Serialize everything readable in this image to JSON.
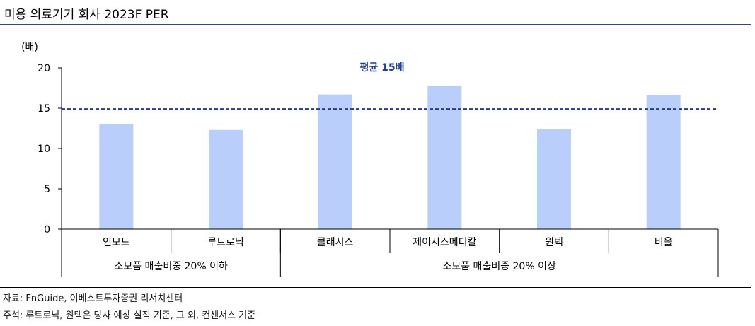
{
  "header": {
    "title": "미용 의료기기 회사 2023F PER"
  },
  "chart_data": {
    "type": "bar",
    "ylabel": "(배)",
    "ylim": [
      0,
      20
    ],
    "yticks": [
      0,
      5,
      10,
      15,
      20
    ],
    "categories": [
      "인모드",
      "루트로닉",
      "클래시스",
      "제이시스메디칼",
      "원텍",
      "비올"
    ],
    "values": [
      13.0,
      12.3,
      16.7,
      17.8,
      12.4,
      16.6
    ],
    "bar_color": "#b9cefa",
    "average": {
      "label": "평균 15배",
      "value": 14.9,
      "color": "#1f3c8f"
    },
    "groups": [
      {
        "label": "소모품 매출비중 20% 이하",
        "from": 0,
        "to": 1
      },
      {
        "label": "소모품 매출비중 20% 이상",
        "from": 2,
        "to": 5
      }
    ]
  },
  "footer": {
    "source": "자료: FnGuide, 이베스트투자증권 리서치센터",
    "note": "주석: 루트로닉, 원텍은 당사 예상 실적 기준, 그 외, 컨센서스 기준"
  }
}
